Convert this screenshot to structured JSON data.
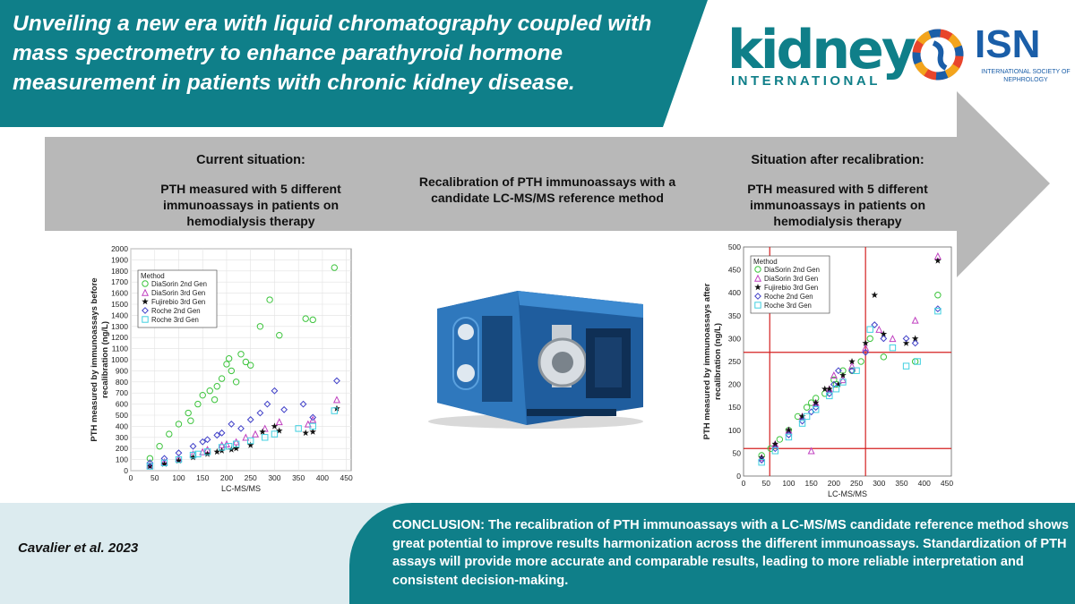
{
  "title": "Unveiling a new era with liquid chromatography coupled with mass spectrometry to enhance parathyroid hormone measurement in patients with chronic kidney disease.",
  "logos": {
    "kidney_main": "kidney",
    "kidney_sub": "INTERNATIONAL",
    "isn_main": "ISN",
    "isn_sub": "INTERNATIONAL SOCIETY OF NEPHROLOGY"
  },
  "stages": {
    "left_head": "Current situation:",
    "left_body": "PTH measured with 5 different immunoassays in patients on hemodialysis therapy",
    "middle_body": "Recalibration of PTH immunoassays with a candidate LC-MS/MS reference method",
    "right_head": "Situation after recalibration:",
    "right_body": "PTH measured with 5 different immunoassays in patients on hemodialysis therapy"
  },
  "citation": "Cavalier et al. 2023",
  "conclusion": "CONCLUSION: The recalibration of PTH immunoassays with a LC-MS/MS candidate reference method shows great potential to improve results harmonization across the different immunoassays. Standardization of PTH assays will provide more accurate and comparable results, leading to more reliable interpretation and consistent decision-making.",
  "chart_data": [
    {
      "type": "scatter",
      "xlabel": "LC-MS/MS",
      "ylabel": "PTH measured by immunoassays before recalibration (ng/L)",
      "xlim": [
        0,
        460
      ],
      "ylim": [
        0,
        2000
      ],
      "xticks": [
        0,
        50,
        100,
        150,
        200,
        250,
        300,
        350,
        400,
        450
      ],
      "yticks": [
        0,
        100,
        200,
        300,
        400,
        500,
        600,
        700,
        800,
        900,
        1000,
        1100,
        1200,
        1300,
        1400,
        1500,
        1600,
        1700,
        1800,
        1900,
        2000
      ],
      "grid": true,
      "legend": {
        "title": "Method",
        "position": "top-left"
      },
      "series": [
        {
          "name": "DiaSorin 2nd Gen",
          "color": "#3cc43c",
          "marker": "circle",
          "points": [
            [
              40,
              110
            ],
            [
              60,
              220
            ],
            [
              80,
              330
            ],
            [
              100,
              420
            ],
            [
              120,
              520
            ],
            [
              140,
              600
            ],
            [
              150,
              680
            ],
            [
              165,
              720
            ],
            [
              180,
              760
            ],
            [
              190,
              830
            ],
            [
              200,
              960
            ],
            [
              210,
              900
            ],
            [
              220,
              800
            ],
            [
              230,
              1050
            ],
            [
              240,
              980
            ],
            [
              250,
              950
            ],
            [
              270,
              1300
            ],
            [
              290,
              1540
            ],
            [
              310,
              1220
            ],
            [
              365,
              1370
            ],
            [
              380,
              1360
            ],
            [
              425,
              1830
            ],
            [
              125,
              450
            ],
            [
              175,
              640
            ],
            [
              205,
              1010
            ]
          ]
        },
        {
          "name": "DiaSorin 3rd Gen",
          "color": "#c040c0",
          "marker": "triangle",
          "points": [
            [
              40,
              50
            ],
            [
              70,
              80
            ],
            [
              100,
              110
            ],
            [
              130,
              150
            ],
            [
              160,
              190
            ],
            [
              190,
              230
            ],
            [
              220,
              260
            ],
            [
              240,
              300
            ],
            [
              260,
              330
            ],
            [
              280,
              380
            ],
            [
              310,
              440
            ],
            [
              370,
              420
            ],
            [
              380,
              460
            ],
            [
              430,
              640
            ],
            [
              150,
              170
            ],
            [
              200,
              240
            ]
          ]
        },
        {
          "name": "Fujirebio 3rd Gen",
          "color": "#111111",
          "marker": "star",
          "points": [
            [
              40,
              40
            ],
            [
              70,
              60
            ],
            [
              100,
              90
            ],
            [
              130,
              120
            ],
            [
              160,
              150
            ],
            [
              190,
              180
            ],
            [
              220,
              200
            ],
            [
              250,
              230
            ],
            [
              275,
              350
            ],
            [
              300,
              400
            ],
            [
              310,
              360
            ],
            [
              365,
              340
            ],
            [
              380,
              350
            ],
            [
              430,
              560
            ],
            [
              180,
              170
            ],
            [
              210,
              190
            ]
          ]
        },
        {
          "name": "Roche 2nd Gen",
          "color": "#4040c8",
          "marker": "diamond",
          "points": [
            [
              40,
              70
            ],
            [
              70,
              110
            ],
            [
              100,
              160
            ],
            [
              130,
              220
            ],
            [
              160,
              280
            ],
            [
              190,
              340
            ],
            [
              210,
              420
            ],
            [
              230,
              380
            ],
            [
              250,
              460
            ],
            [
              270,
              520
            ],
            [
              285,
              600
            ],
            [
              300,
              720
            ],
            [
              320,
              550
            ],
            [
              360,
              600
            ],
            [
              380,
              480
            ],
            [
              430,
              810
            ],
            [
              150,
              260
            ],
            [
              180,
              320
            ]
          ]
        },
        {
          "name": "Roche 3rd Gen",
          "color": "#40d0e0",
          "marker": "square",
          "points": [
            [
              40,
              40
            ],
            [
              70,
              70
            ],
            [
              100,
              100
            ],
            [
              130,
              140
            ],
            [
              160,
              170
            ],
            [
              190,
              210
            ],
            [
              220,
              240
            ],
            [
              250,
              270
            ],
            [
              280,
              300
            ],
            [
              300,
              330
            ],
            [
              350,
              380
            ],
            [
              380,
              400
            ],
            [
              425,
              540
            ],
            [
              140,
              150
            ],
            [
              205,
              220
            ]
          ]
        }
      ]
    },
    {
      "type": "scatter",
      "xlabel": "LC-MS/MS",
      "ylabel": "PTH measured by immunoassays after recalibration (ng/L)",
      "xlim": [
        0,
        460
      ],
      "ylim": [
        0,
        500
      ],
      "xticks": [
        0,
        50,
        100,
        150,
        200,
        250,
        300,
        350,
        400,
        450
      ],
      "yticks": [
        0,
        50,
        100,
        150,
        200,
        250,
        300,
        350,
        400,
        450,
        500
      ],
      "grid": false,
      "legend": {
        "title": "Method",
        "position": "top-left"
      },
      "reference_lines": {
        "x": [
          58,
          270
        ],
        "y": [
          60,
          270
        ]
      },
      "series": [
        {
          "name": "DiaSorin 2nd Gen",
          "color": "#3cc43c",
          "marker": "circle",
          "points": [
            [
              40,
              45
            ],
            [
              60,
              60
            ],
            [
              80,
              80
            ],
            [
              100,
              100
            ],
            [
              120,
              130
            ],
            [
              140,
              150
            ],
            [
              160,
              170
            ],
            [
              180,
              180
            ],
            [
              200,
              210
            ],
            [
              220,
              230
            ],
            [
              240,
              230
            ],
            [
              260,
              250
            ],
            [
              280,
              300
            ],
            [
              310,
              260
            ],
            [
              380,
              250
            ],
            [
              430,
              395
            ],
            [
              150,
              160
            ],
            [
              205,
              200
            ]
          ]
        },
        {
          "name": "DiaSorin 3rd Gen",
          "color": "#c040c0",
          "marker": "triangle",
          "points": [
            [
              40,
              40
            ],
            [
              70,
              70
            ],
            [
              100,
              100
            ],
            [
              130,
              130
            ],
            [
              160,
              160
            ],
            [
              190,
              190
            ],
            [
              220,
              210
            ],
            [
              240,
              240
            ],
            [
              270,
              280
            ],
            [
              300,
              320
            ],
            [
              330,
              300
            ],
            [
              380,
              340
            ],
            [
              430,
              480
            ],
            [
              150,
              55
            ],
            [
              200,
              220
            ]
          ]
        },
        {
          "name": "Fujirebio 3rd Gen",
          "color": "#111111",
          "marker": "star",
          "points": [
            [
              40,
              40
            ],
            [
              70,
              70
            ],
            [
              100,
              100
            ],
            [
              130,
              130
            ],
            [
              160,
              160
            ],
            [
              190,
              190
            ],
            [
              210,
              200
            ],
            [
              240,
              250
            ],
            [
              270,
              290
            ],
            [
              290,
              395
            ],
            [
              310,
              310
            ],
            [
              360,
              290
            ],
            [
              380,
              300
            ],
            [
              430,
              470
            ],
            [
              180,
              190
            ],
            [
              220,
              220
            ]
          ]
        },
        {
          "name": "Roche 2nd Gen",
          "color": "#4040c8",
          "marker": "diamond",
          "points": [
            [
              40,
              35
            ],
            [
              70,
              60
            ],
            [
              100,
              90
            ],
            [
              130,
              120
            ],
            [
              160,
              150
            ],
            [
              190,
              180
            ],
            [
              210,
              230
            ],
            [
              240,
              230
            ],
            [
              270,
              270
            ],
            [
              290,
              330
            ],
            [
              310,
              300
            ],
            [
              360,
              300
            ],
            [
              380,
              290
            ],
            [
              430,
              365
            ],
            [
              150,
              140
            ],
            [
              200,
              200
            ]
          ]
        },
        {
          "name": "Roche 3rd Gen",
          "color": "#40d0e0",
          "marker": "square",
          "points": [
            [
              40,
              30
            ],
            [
              70,
              55
            ],
            [
              100,
              85
            ],
            [
              130,
              115
            ],
            [
              160,
              145
            ],
            [
              190,
              175
            ],
            [
              220,
              205
            ],
            [
              250,
              230
            ],
            [
              280,
              320
            ],
            [
              330,
              280
            ],
            [
              360,
              240
            ],
            [
              385,
              250
            ],
            [
              430,
              360
            ],
            [
              140,
              130
            ],
            [
              205,
              190
            ]
          ]
        }
      ]
    }
  ]
}
